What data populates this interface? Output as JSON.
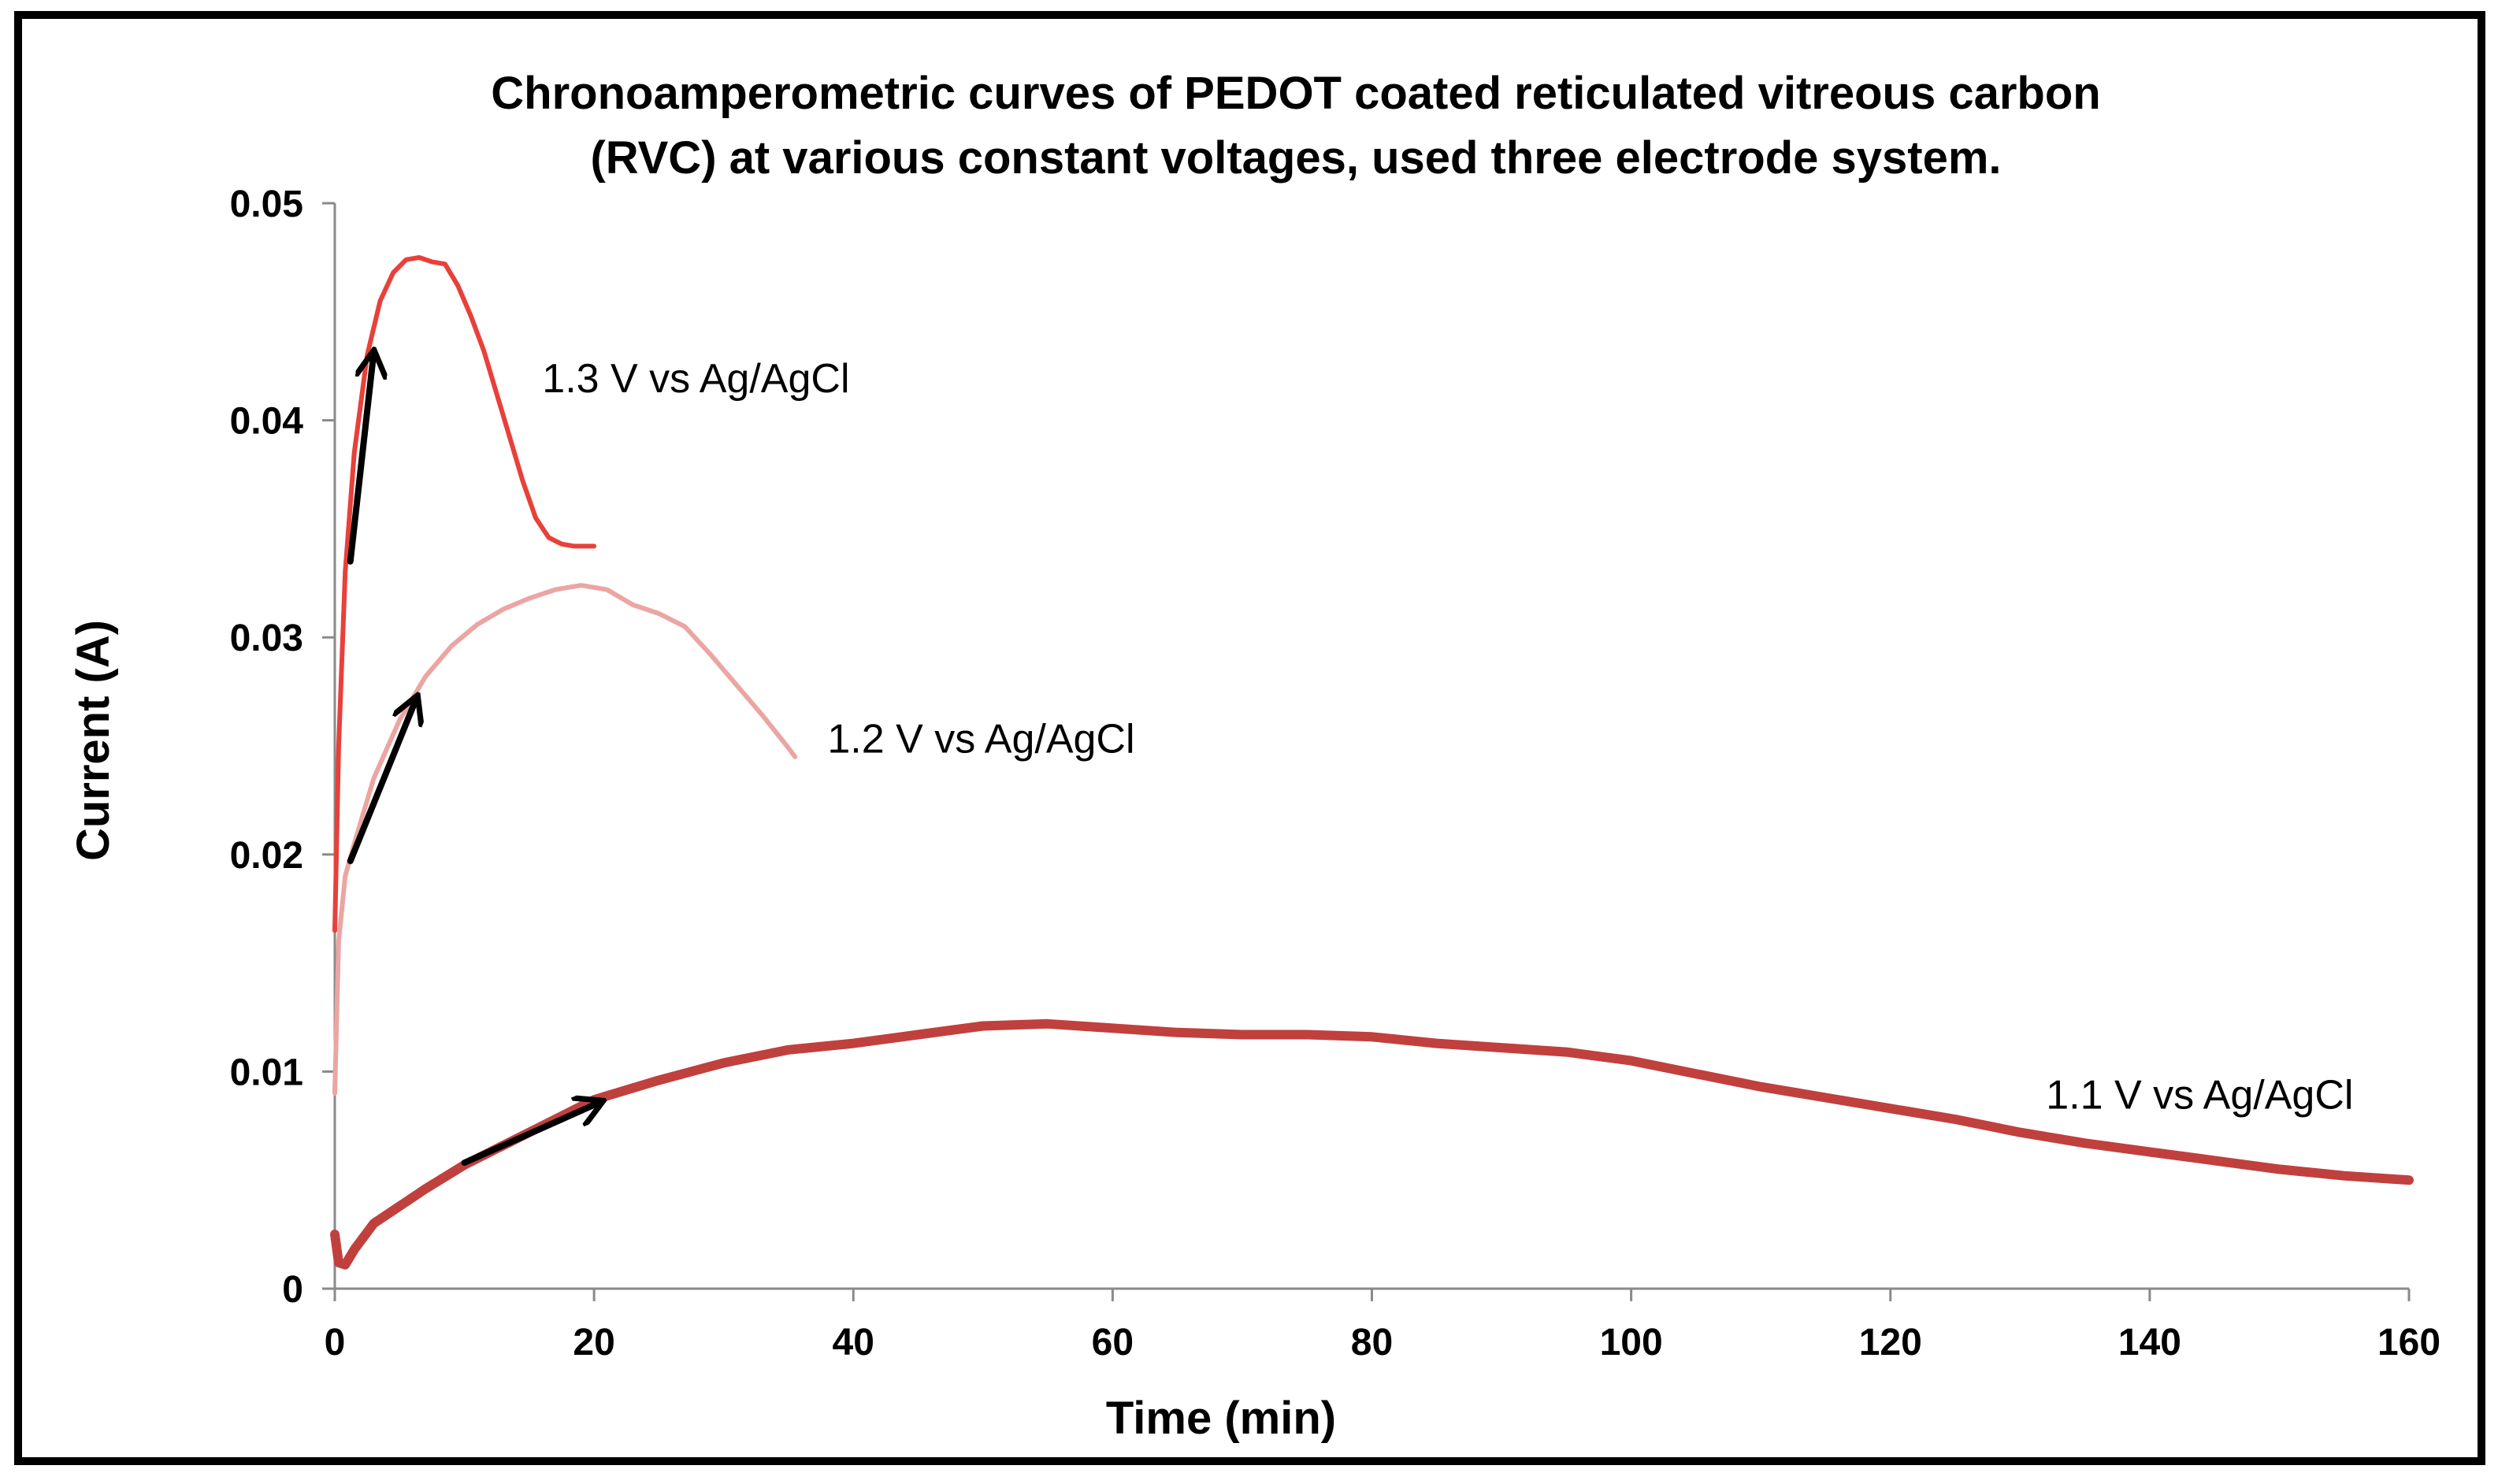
{
  "chart_data": {
    "type": "line",
    "title_lines": [
      "Chronoamperometric curves of  PEDOT coated reticulated vitreous carbon",
      "(RVC) at various constant voltages, used three electrode system."
    ],
    "xlabel": "Time (min)",
    "ylabel": "Current (A)",
    "xlim": [
      0,
      160
    ],
    "ylim": [
      0,
      0.05
    ],
    "x_ticks": [
      0,
      20,
      40,
      60,
      80,
      100,
      120,
      140,
      160
    ],
    "x_tick_labels": [
      "0",
      "20",
      "40",
      "60",
      "80",
      "100",
      "120",
      "140",
      "160"
    ],
    "y_ticks": [
      0,
      0.01,
      0.02,
      0.03,
      0.04,
      0.05
    ],
    "y_tick_labels": [
      "0",
      "0.01",
      "0.02",
      "0.03",
      "0.04",
      "0.05"
    ],
    "grid": false,
    "series": [
      {
        "name": "1.3 V vs Ag/AgCl",
        "color": "#e8403a",
        "x": [
          0,
          0.3,
          0.8,
          1.5,
          2.5,
          3.5,
          4.5,
          5.5,
          6.5,
          7.5,
          8.5,
          9.5,
          10.5,
          11.5,
          12.5,
          13.5,
          14.5,
          15.5,
          16.5,
          17.5,
          18.5,
          19.5,
          20
        ],
        "values": [
          0.0165,
          0.025,
          0.033,
          0.0385,
          0.043,
          0.0455,
          0.0468,
          0.0474,
          0.0475,
          0.0473,
          0.0472,
          0.0462,
          0.0448,
          0.0432,
          0.0412,
          0.0392,
          0.0372,
          0.0355,
          0.0346,
          0.0343,
          0.0342,
          0.0342,
          0.0342
        ]
      },
      {
        "name": "1.2 V vs Ag/AgCl",
        "color": "#eba5a2",
        "x": [
          0,
          0.3,
          0.8,
          1.5,
          3,
          5,
          7,
          9,
          11,
          13,
          15,
          17,
          19,
          21,
          23,
          25,
          27,
          29,
          31,
          33,
          35,
          35.5
        ],
        "values": [
          0.009,
          0.016,
          0.019,
          0.0205,
          0.0235,
          0.0262,
          0.0282,
          0.0296,
          0.0306,
          0.0313,
          0.0318,
          0.0322,
          0.0324,
          0.0322,
          0.0315,
          0.0311,
          0.0305,
          0.0292,
          0.0278,
          0.0264,
          0.0249,
          0.0245
        ]
      },
      {
        "name": "1.1 V vs Ag/AgCl",
        "color": "#c0403e",
        "x": [
          0,
          0.3,
          0.8,
          1.5,
          3,
          5,
          7,
          10,
          13,
          16,
          20,
          25,
          30,
          35,
          40,
          45,
          50,
          55,
          60,
          65,
          70,
          75,
          80,
          85,
          90,
          95,
          100,
          105,
          110,
          115,
          120,
          125,
          130,
          135,
          140,
          145,
          150,
          155,
          160
        ],
        "values": [
          0.0025,
          0.0012,
          0.0011,
          0.0018,
          0.003,
          0.0038,
          0.0046,
          0.0057,
          0.0066,
          0.0075,
          0.0087,
          0.0096,
          0.0104,
          0.011,
          0.0113,
          0.0117,
          0.0121,
          0.0122,
          0.012,
          0.0118,
          0.0117,
          0.0117,
          0.0116,
          0.0113,
          0.0111,
          0.0109,
          0.0105,
          0.0099,
          0.0093,
          0.0088,
          0.0083,
          0.0078,
          0.0072,
          0.0067,
          0.0063,
          0.0059,
          0.0055,
          0.0052,
          0.005
        ]
      }
    ],
    "annotations": [
      {
        "type": "arrow",
        "from": [
          1.2,
          0.0335
        ],
        "to": [
          3,
          0.0431
        ],
        "color": "#000000"
      },
      {
        "type": "arrow",
        "from": [
          1.2,
          0.0197
        ],
        "to": [
          6.3,
          0.0272
        ],
        "color": "#000000"
      },
      {
        "type": "arrow",
        "from": [
          10,
          0.0058
        ],
        "to": [
          20.5,
          0.0086
        ],
        "color": "#000000"
      }
    ],
    "labels": [
      {
        "text": "1.3 V vs Ag/AgCl",
        "x": 16,
        "y": 0.0413,
        "anchor": "start"
      },
      {
        "text": "1.2 V vs Ag/AgCl",
        "x": 38,
        "y": 0.0247,
        "anchor": "start"
      },
      {
        "text": "1.1 V vs Ag/AgCl",
        "x": 132,
        "y": 0.0083,
        "anchor": "start"
      }
    ]
  }
}
